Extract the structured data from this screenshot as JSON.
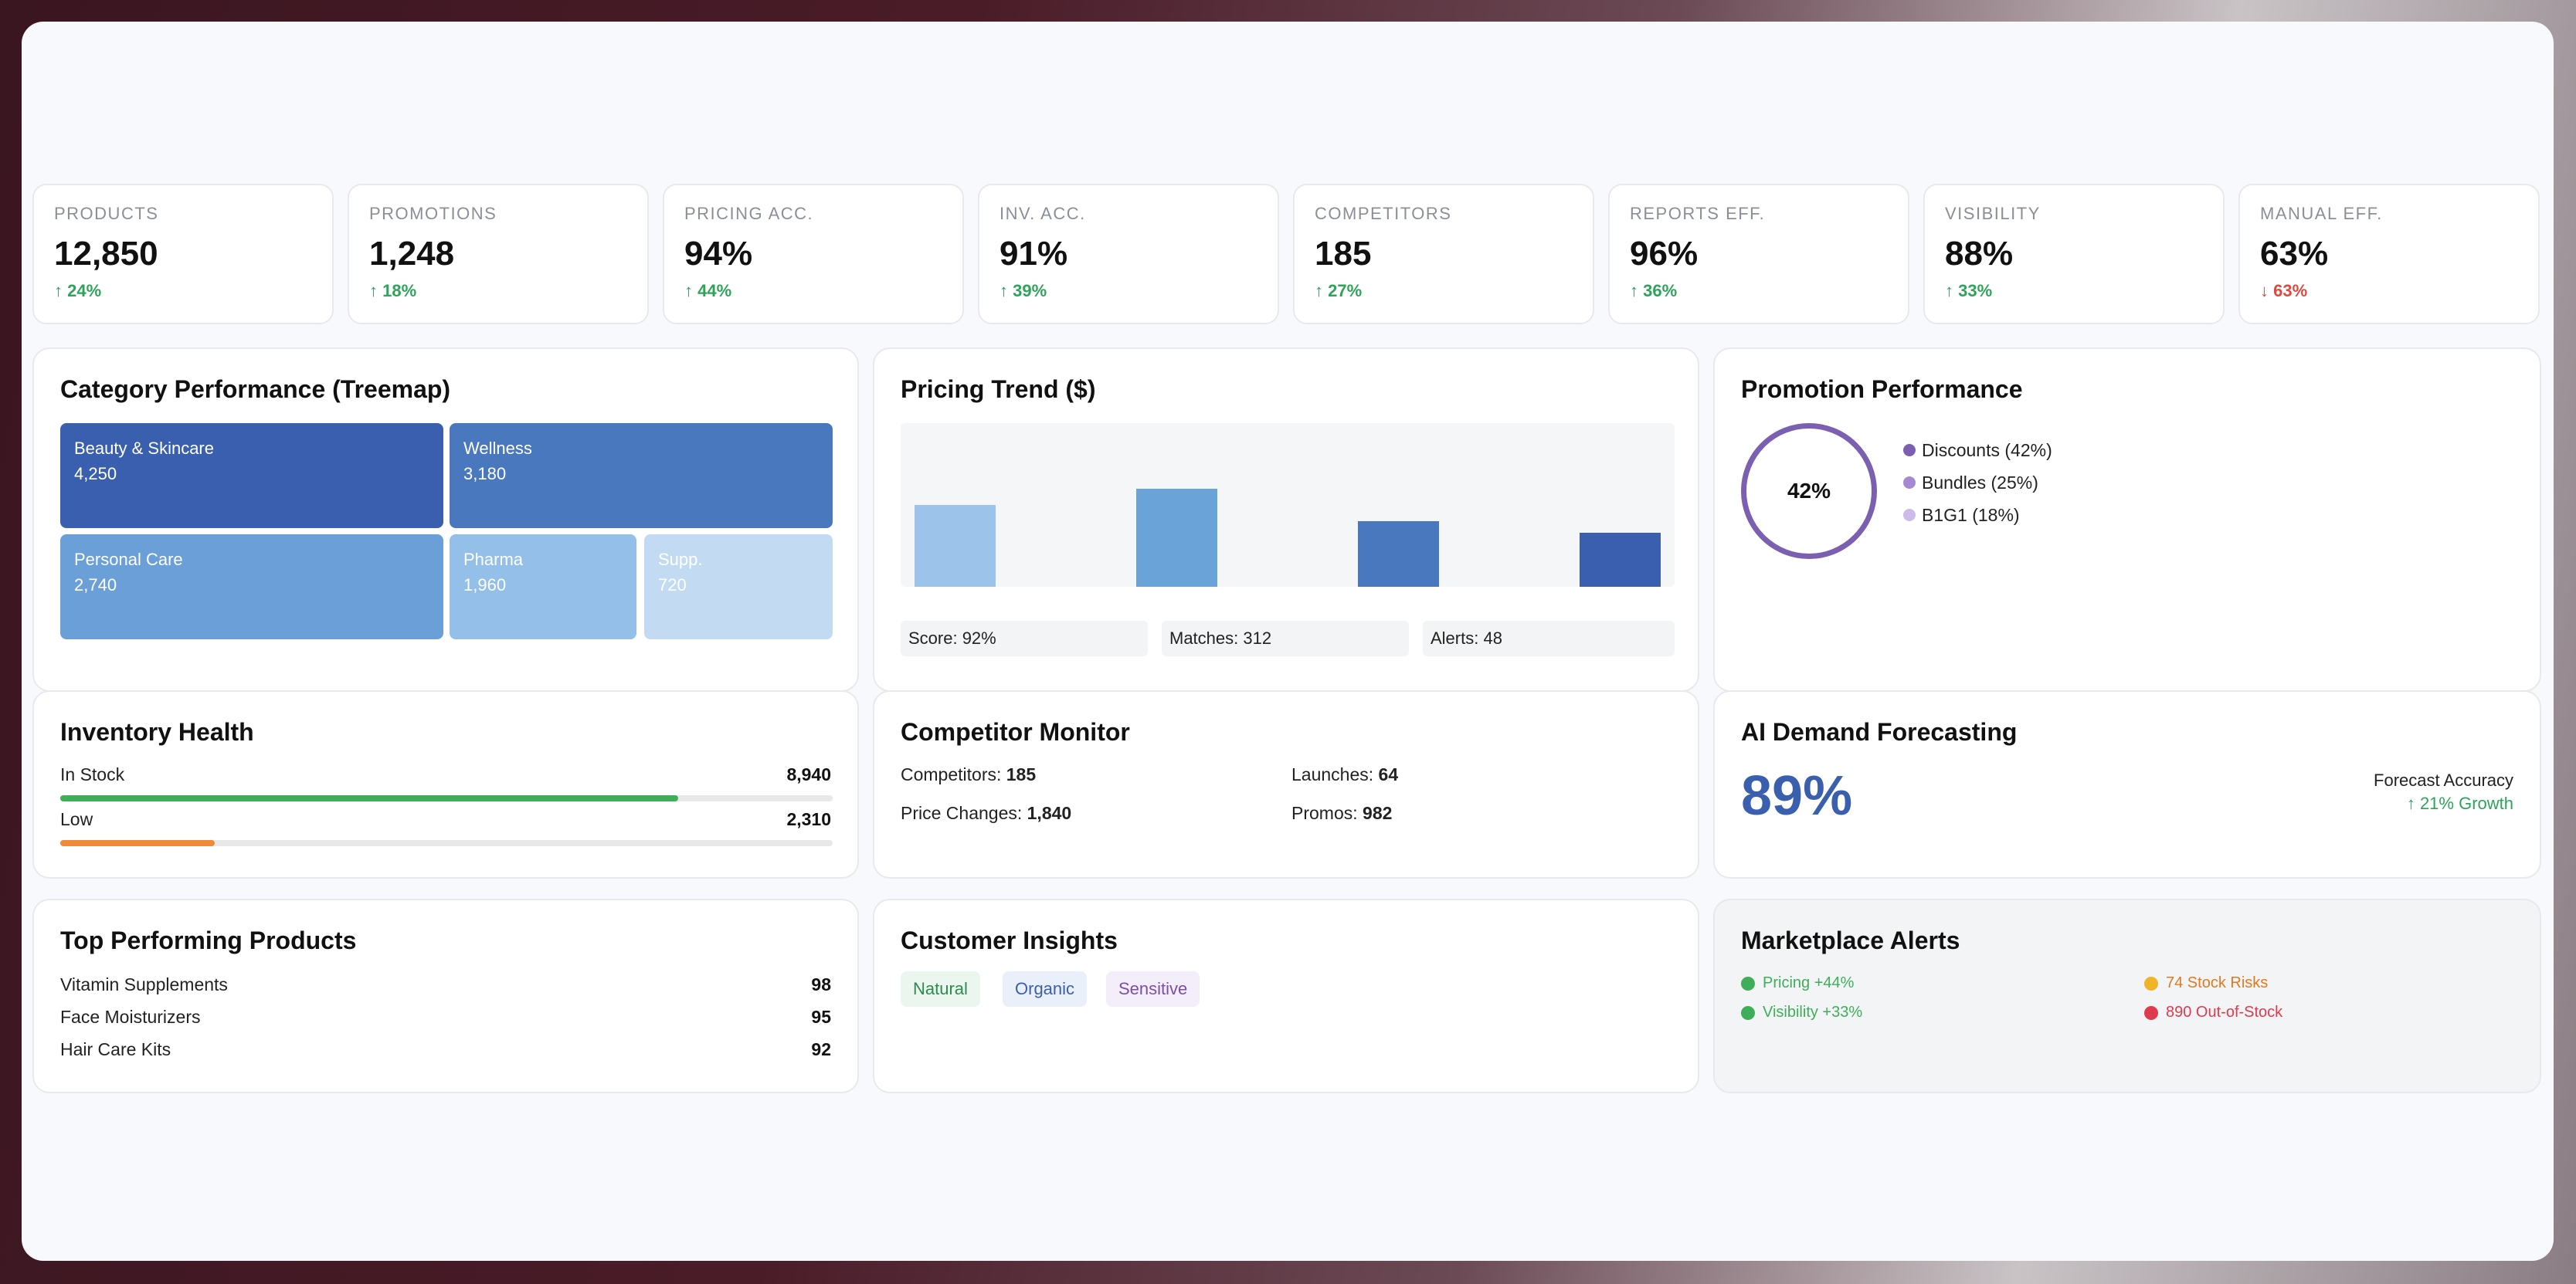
{
  "kpis": [
    {
      "label": "PRODUCTS",
      "value": "12,850",
      "change": "↑ 24%",
      "dir": "up"
    },
    {
      "label": "PROMOTIONS",
      "value": "1,248",
      "change": "↑ 18%",
      "dir": "up"
    },
    {
      "label": "PRICING ACC.",
      "value": "94%",
      "change": "↑ 44%",
      "dir": "up"
    },
    {
      "label": "INV. ACC.",
      "value": "91%",
      "change": "↑ 39%",
      "dir": "up"
    },
    {
      "label": "COMPETITORS",
      "value": "185",
      "change": "↑ 27%",
      "dir": "up"
    },
    {
      "label": "REPORTS EFF.",
      "value": "96%",
      "change": "↑ 36%",
      "dir": "up"
    },
    {
      "label": "VISIBILITY",
      "value": "88%",
      "change": "↑ 33%",
      "dir": "up"
    },
    {
      "label": "MANUAL EFF.",
      "value": "63%",
      "change": "↓ 63%",
      "dir": "down"
    }
  ],
  "category": {
    "title": "Category Performance (Treemap)",
    "tiles": [
      {
        "name": "Beauty & Skincare",
        "value": "4,250",
        "color": "#3a5fae"
      },
      {
        "name": "Wellness",
        "value": "3,180",
        "color": "#4a78bf"
      },
      {
        "name": "Personal Care",
        "value": "2,740",
        "color": "#6b9fd8"
      },
      {
        "name": "Pharma",
        "value": "1,960",
        "color": "#93bfe9"
      },
      {
        "name": "Supp.",
        "value": "720",
        "color": "#c2dbf3"
      }
    ]
  },
  "pricing": {
    "title": "Pricing Trend ($)",
    "stats": [
      "Score: 92%",
      "Matches: 312",
      "Alerts: 48"
    ]
  },
  "chart_data": {
    "type": "bar",
    "title": "Pricing Trend ($)",
    "categories": [
      "",
      "",
      "",
      ""
    ],
    "values": [
      50,
      60,
      40,
      33
    ],
    "colors": [
      "#9cc4ea",
      "#6aa3d8",
      "#4a78bf",
      "#3a5fae"
    ],
    "ylim": [
      0,
      100
    ]
  },
  "promotion": {
    "title": "Promotion Performance",
    "center": "42%",
    "legend": [
      {
        "label": "Discounts (42%)",
        "color": "#7b5fb0"
      },
      {
        "label": "Bundles (25%)",
        "color": "#a58ad2"
      },
      {
        "label": "B1G1 (18%)",
        "color": "#cdbbe8"
      }
    ]
  },
  "inventory": {
    "title": "Inventory Health",
    "rows": [
      {
        "label": "In Stock",
        "value": "8,940",
        "fill": 0.8,
        "color": "#3fae5a"
      },
      {
        "label": "Low",
        "value": "2,310",
        "fill": 0.2,
        "color": "#ef8a3a"
      }
    ]
  },
  "competitor": {
    "title": "Competitor Monitor",
    "items": [
      {
        "label": "Competitors: ",
        "value": "185"
      },
      {
        "label": "Launches: ",
        "value": "64"
      },
      {
        "label": "Price Changes: ",
        "value": "1,840"
      },
      {
        "label": "Promos: ",
        "value": "982"
      }
    ]
  },
  "forecast": {
    "title": "AI Demand Forecasting",
    "value": "89%",
    "caption": "Forecast Accuracy",
    "growth": "↑ 21% Growth"
  },
  "top_products": {
    "title": "Top Performing Products",
    "rows": [
      {
        "name": "Vitamin Supplements",
        "score": "98"
      },
      {
        "name": "Face Moisturizers",
        "score": "95"
      },
      {
        "name": "Hair Care Kits",
        "score": "92"
      }
    ]
  },
  "insights": {
    "title": "Customer Insights",
    "tags": [
      "Natural",
      "Organic",
      "Sensitive"
    ]
  },
  "alerts": {
    "title": "Marketplace Alerts",
    "items": [
      {
        "text": "Pricing +44%",
        "color": "#3fae5a",
        "text_color": "#3fae5a"
      },
      {
        "text": "74 Stock Risks",
        "color": "#f0b429",
        "text_color": "#e07a1f"
      },
      {
        "text": "Visibility +33%",
        "color": "#3fae5a",
        "text_color": "#3fae5a"
      },
      {
        "text": "890 Out-of-Stock",
        "color": "#e03a4f",
        "text_color": "#e03a4f"
      }
    ]
  }
}
